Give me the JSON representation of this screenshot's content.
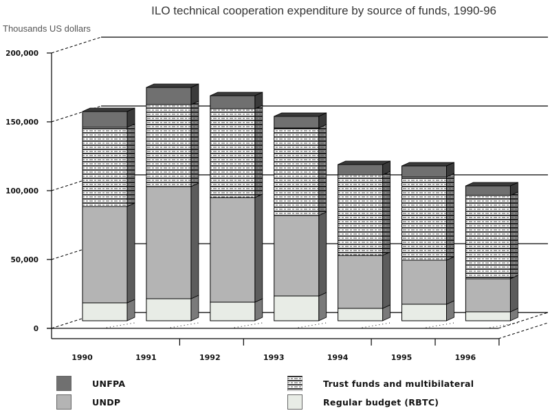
{
  "chart_data": {
    "type": "bar",
    "stacked": true,
    "title": "ILO technical cooperation expenditure by source of funds, 1990-96",
    "ylabel": "Thousands US dollars",
    "xlabel": "",
    "ylim": [
      0,
      200000
    ],
    "yticks": [
      0,
      50000,
      100000,
      150000,
      200000
    ],
    "ytick_labels": [
      "0",
      "50,000",
      "100,000",
      "150,000",
      "200,000"
    ],
    "grid": true,
    "legend_position": "bottom",
    "categories": [
      "1990",
      "1991",
      "1992",
      "1993",
      "1994",
      "1995",
      "1996"
    ],
    "series": [
      {
        "name": "Regular budget (RBTC)",
        "color": "#e8ece6",
        "pattern": "solid",
        "values": [
          13000,
          16000,
          13500,
          18000,
          9000,
          12000,
          6500
        ]
      },
      {
        "name": "UNDP",
        "color": "#b4b4b4",
        "pattern": "solid",
        "values": [
          70000,
          81500,
          76000,
          58500,
          38500,
          32000,
          24000
        ]
      },
      {
        "name": "Trust funds and multibilateral",
        "color": "#ffffff",
        "pattern": "hatched",
        "values": [
          57500,
          59500,
          64500,
          63500,
          58500,
          60500,
          60500
        ]
      },
      {
        "name": "UNFPA",
        "color": "#707070",
        "pattern": "solid",
        "values": [
          11500,
          12500,
          9500,
          8500,
          7500,
          8000,
          7000
        ]
      }
    ]
  },
  "legend": {
    "items": [
      {
        "label": "UNFPA",
        "color": "#707070",
        "pattern": "solid"
      },
      {
        "label": "UNDP",
        "color": "#b4b4b4",
        "pattern": "solid"
      },
      {
        "label": "Trust funds and multibilateral",
        "color": "#ffffff",
        "pattern": "hatched"
      },
      {
        "label": "Regular budget (RBTC)",
        "color": "#e8ece6",
        "pattern": "solid"
      }
    ]
  }
}
